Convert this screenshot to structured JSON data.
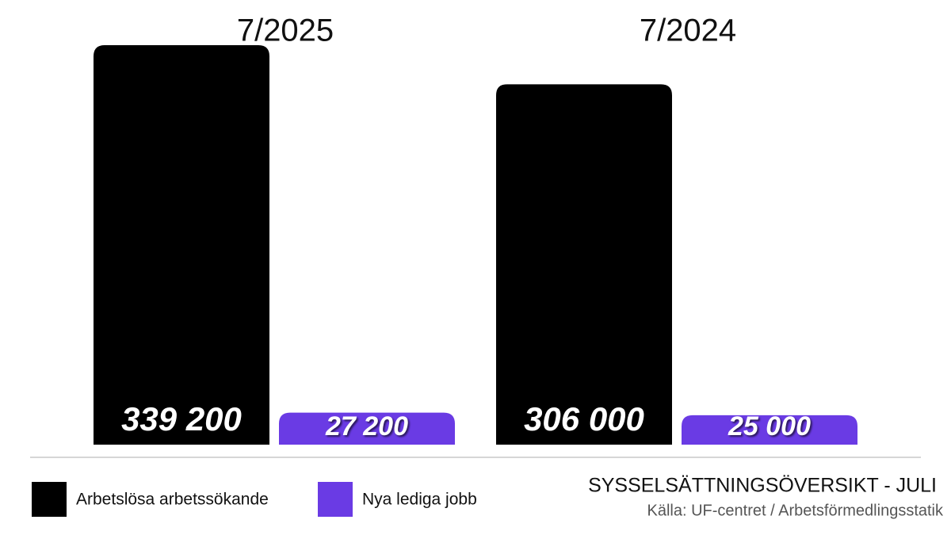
{
  "chart_data": {
    "type": "bar",
    "title": "SYSSELSÄTTNINGSÖVERSIKT - JULI",
    "subtitle": "Källa: UF-centret / Arbetsförmedlingsstatik",
    "categories": [
      "7/2025",
      "7/2024"
    ],
    "series": [
      {
        "name": "Arbetslösa arbetssökande",
        "color": "#000000",
        "values": [
          339200,
          306000
        ],
        "value_labels": [
          "339 200",
          "306 000"
        ]
      },
      {
        "name": "Nya lediga jobb",
        "color": "#6a3be4",
        "values": [
          27200,
          25000
        ],
        "value_labels": [
          "27 200",
          "25 000"
        ]
      }
    ]
  }
}
